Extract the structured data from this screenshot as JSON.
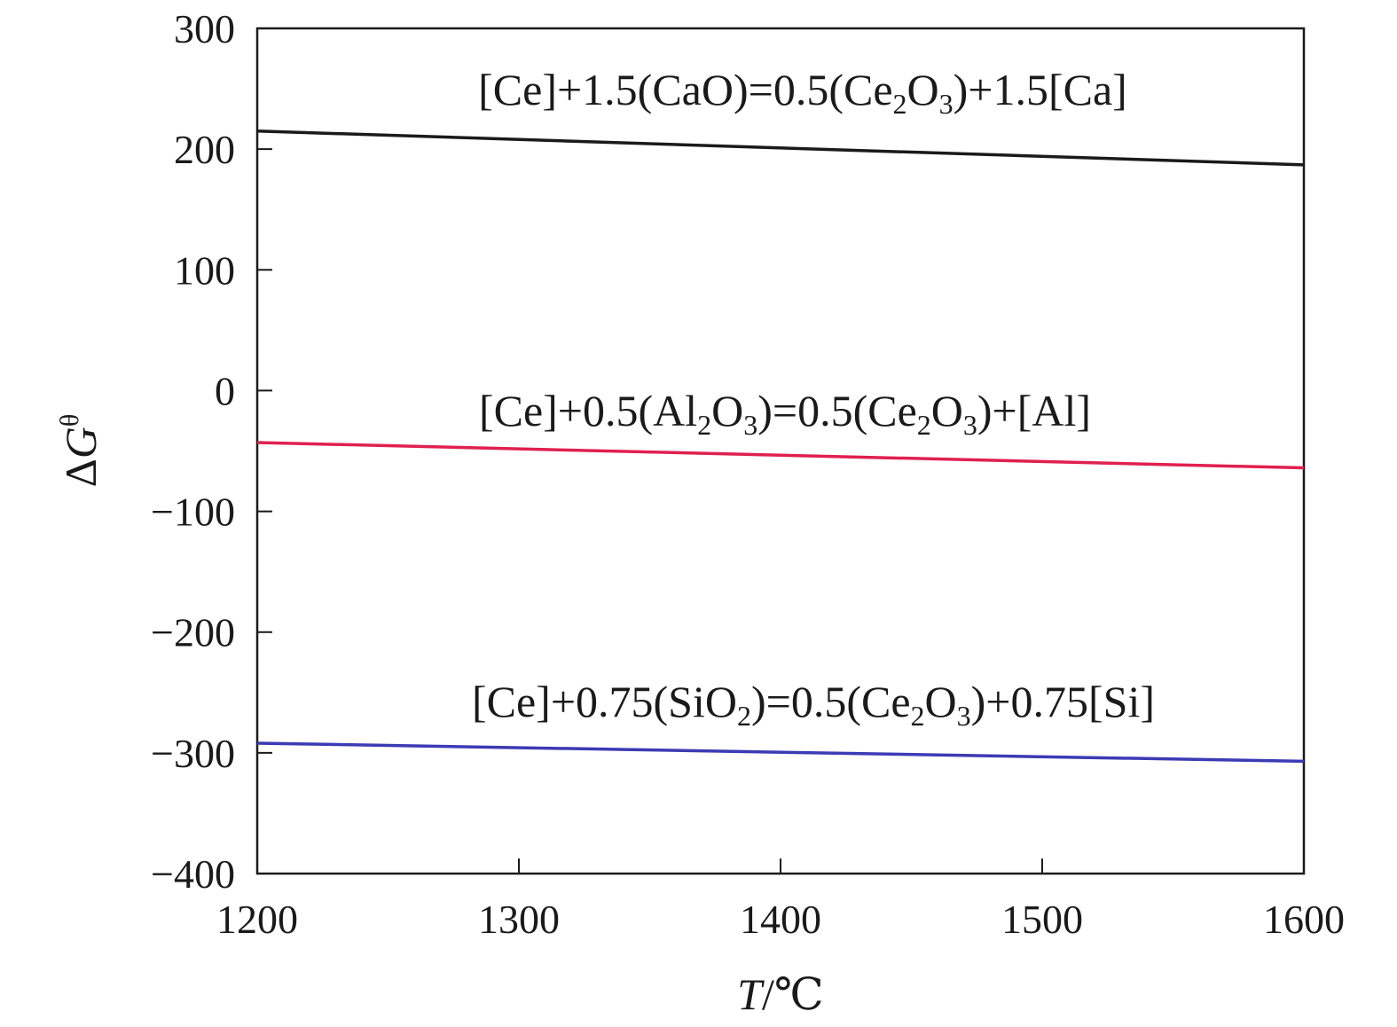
{
  "chart_data": {
    "type": "line",
    "xlabel": {
      "var": "T",
      "unit": "/℃"
    },
    "ylabel": {
      "prefix": "Δ",
      "var": "G",
      "sup": "θ"
    },
    "xlim": [
      1200,
      1600
    ],
    "ylim": [
      -400,
      300
    ],
    "xticks": [
      1200,
      1300,
      1400,
      1500,
      1600
    ],
    "yticks": [
      300,
      200,
      100,
      0,
      -100,
      -200,
      -300,
      -400
    ],
    "xtick_labels": [
      "1200",
      "1300",
      "1400",
      "1500",
      "1600"
    ],
    "ytick_labels": [
      "300",
      "200",
      "100",
      "0",
      "−100",
      "−200",
      "−300",
      "−400"
    ],
    "grid": false,
    "series": [
      {
        "name": "[Ce]+1.5(CaO)=0.5(Ce2O3)+1.5[Ca]",
        "name_parts": [
          {
            "t": "[Ce]+1.5(CaO)=0.5(Ce"
          },
          {
            "t": "2",
            "sub": true
          },
          {
            "t": "O"
          },
          {
            "t": "3",
            "sub": true
          },
          {
            "t": ")+1.5[Ca]"
          }
        ],
        "color": "#1a1a1a",
        "x": [
          1200,
          1600
        ],
        "y": [
          215,
          187
        ]
      },
      {
        "name": "[Ce]+0.5(Al2O3)=0.5(Ce2O3)+[Al]",
        "name_parts": [
          {
            "t": "[Ce]+0.5(Al"
          },
          {
            "t": "2",
            "sub": true
          },
          {
            "t": "O"
          },
          {
            "t": "3",
            "sub": true
          },
          {
            "t": ")=0.5(Ce"
          },
          {
            "t": "2",
            "sub": true
          },
          {
            "t": "O"
          },
          {
            "t": "3",
            "sub": true
          },
          {
            "t": ")+[Al]"
          }
        ],
        "color": "#e0204f",
        "x": [
          1200,
          1600
        ],
        "y": [
          -43,
          -64
        ]
      },
      {
        "name": "[Ce]+0.75(SiO2)=0.5(Ce2O3)+0.75[Si]",
        "name_parts": [
          {
            "t": "[Ce]+0.75(SiO"
          },
          {
            "t": "2",
            "sub": true
          },
          {
            "t": ")=0.5(Ce"
          },
          {
            "t": "2",
            "sub": true
          },
          {
            "t": "O"
          },
          {
            "t": "3",
            "sub": true
          },
          {
            "t": ")+0.75[Si]"
          }
        ],
        "color": "#3b3bb5",
        "x": [
          1200,
          1600
        ],
        "y": [
          -292,
          -307
        ]
      }
    ]
  }
}
